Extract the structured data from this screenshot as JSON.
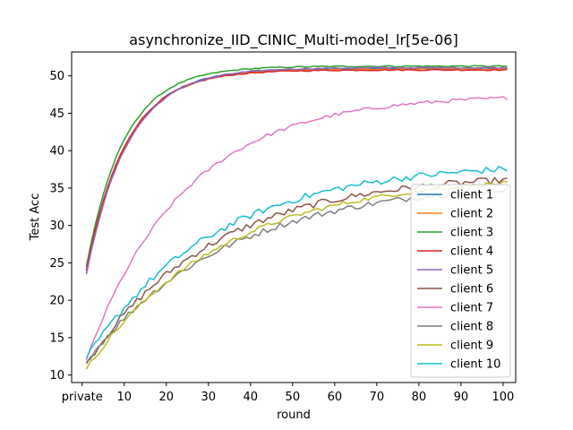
{
  "chart_data": {
    "type": "line",
    "title": "asynchronize_IID_CINIC_Multi-model_lr[5e-06]",
    "xlabel": "round",
    "ylabel": "Test Acc",
    "xlim": [
      -2.5,
      103
    ],
    "ylim": [
      9,
      53.2
    ],
    "x_ticks": [
      {
        "value": 0,
        "label": "private"
      },
      {
        "value": 10,
        "label": "10"
      },
      {
        "value": 20,
        "label": "20"
      },
      {
        "value": 30,
        "label": "30"
      },
      {
        "value": 40,
        "label": "40"
      },
      {
        "value": 50,
        "label": "50"
      },
      {
        "value": 60,
        "label": "60"
      },
      {
        "value": 70,
        "label": "70"
      },
      {
        "value": 80,
        "label": "80"
      },
      {
        "value": 90,
        "label": "90"
      },
      {
        "value": 100,
        "label": "100"
      }
    ],
    "y_ticks": [
      10,
      15,
      20,
      25,
      30,
      35,
      40,
      45,
      50
    ],
    "grid": false,
    "legend_position": "lower-right",
    "x_max": 101,
    "series": [
      {
        "name": "client 1",
        "color": "#1f77b4",
        "start": 23.5,
        "end": 51.0,
        "tau": 9.5,
        "noise": 0.08
      },
      {
        "name": "client 2",
        "color": "#ff7f0e",
        "start": 24.0,
        "end": 50.9,
        "tau": 9.6,
        "noise": 0.08
      },
      {
        "name": "client 3",
        "color": "#2ca02c",
        "start": 24.5,
        "end": 51.3,
        "tau": 9.0,
        "noise": 0.08
      },
      {
        "name": "client 4",
        "color": "#d62728",
        "start": 24.0,
        "end": 50.8,
        "tau": 9.4,
        "noise": 0.08
      },
      {
        "name": "client 5",
        "color": "#9467bd",
        "start": 23.5,
        "end": 51.1,
        "tau": 9.8,
        "noise": 0.08
      },
      {
        "name": "client 6",
        "color": "#8c564b",
        "start": 11.5,
        "end": 37.0,
        "tau": 30.0,
        "noise": 0.45
      },
      {
        "name": "client 7",
        "color": "#e377c2",
        "start": 12.0,
        "end": 47.5,
        "tau": 23.0,
        "noise": 0.25
      },
      {
        "name": "client 8",
        "color": "#7f7f7f",
        "start": 11.8,
        "end": 36.0,
        "tau": 33.0,
        "noise": 0.4
      },
      {
        "name": "client 9",
        "color": "#bcbd22",
        "start": 10.8,
        "end": 36.8,
        "tau": 32.0,
        "noise": 0.3
      },
      {
        "name": "client 10",
        "color": "#17becf",
        "start": 12.2,
        "end": 38.5,
        "tau": 30.0,
        "noise": 0.45
      }
    ]
  }
}
